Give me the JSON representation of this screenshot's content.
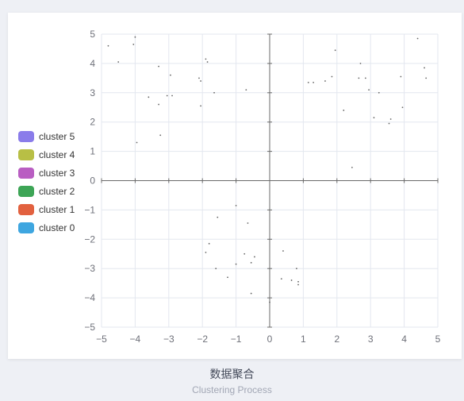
{
  "caption": {
    "title": "数据聚合",
    "subtitle": "Clustering Process"
  },
  "legend": [
    {
      "label": "cluster 5",
      "color": "#8a7cea"
    },
    {
      "label": "cluster 4",
      "color": "#b8bf45"
    },
    {
      "label": "cluster 3",
      "color": "#b95ec2"
    },
    {
      "label": "cluster 2",
      "color": "#3da556"
    },
    {
      "label": "cluster 1",
      "color": "#e2613f"
    },
    {
      "label": "cluster 0",
      "color": "#3ea6e0"
    }
  ],
  "chart_data": {
    "type": "scatter",
    "xlim": [
      -5,
      5
    ],
    "ylim": [
      -5,
      5
    ],
    "x_ticks": [
      "−5",
      "−4",
      "−3",
      "−2",
      "−1",
      "0",
      "1",
      "2",
      "3",
      "4",
      "5"
    ],
    "y_ticks": [
      "−5",
      "−4",
      "−3",
      "−2",
      "−1",
      "0",
      "1",
      "2",
      "3",
      "4",
      "5"
    ],
    "grid": true,
    "legend_position": "left",
    "point_color": "#666666",
    "series": [
      {
        "points": [
          [
            -4.8,
            4.6
          ],
          [
            -4.0,
            4.9
          ],
          [
            -4.05,
            4.65
          ],
          [
            -4.5,
            4.05
          ],
          [
            -3.3,
            3.9
          ],
          [
            -2.95,
            3.6
          ],
          [
            -3.6,
            2.85
          ],
          [
            -3.3,
            2.6
          ],
          [
            -3.05,
            2.9
          ],
          [
            -2.9,
            2.9
          ],
          [
            -3.95,
            1.3
          ],
          [
            -3.25,
            1.55
          ],
          [
            -1.9,
            4.15
          ],
          [
            -1.85,
            4.05
          ],
          [
            -2.1,
            3.5
          ],
          [
            -2.05,
            3.4
          ],
          [
            -1.65,
            3.0
          ],
          [
            -0.7,
            3.1
          ],
          [
            -2.05,
            2.55
          ]
        ]
      },
      {
        "points": [
          [
            4.4,
            4.85
          ],
          [
            1.95,
            4.45
          ],
          [
            2.7,
            4.0
          ],
          [
            4.6,
            3.85
          ],
          [
            2.65,
            3.5
          ],
          [
            2.85,
            3.5
          ],
          [
            3.9,
            3.55
          ],
          [
            4.65,
            3.5
          ],
          [
            1.85,
            3.55
          ],
          [
            1.65,
            3.4
          ],
          [
            1.3,
            3.35
          ],
          [
            1.15,
            3.35
          ],
          [
            2.95,
            3.1
          ],
          [
            3.25,
            3.0
          ],
          [
            3.95,
            2.5
          ],
          [
            2.2,
            2.4
          ],
          [
            3.1,
            2.15
          ],
          [
            3.6,
            2.1
          ],
          [
            3.55,
            1.95
          ],
          [
            2.45,
            0.45
          ]
        ]
      },
      {
        "points": [
          [
            -1.0,
            -0.85
          ],
          [
            -1.55,
            -1.25
          ],
          [
            -0.65,
            -1.45
          ],
          [
            -1.8,
            -2.15
          ],
          [
            -1.9,
            -2.45
          ],
          [
            -0.75,
            -2.5
          ],
          [
            -0.45,
            -2.6
          ],
          [
            -1.0,
            -2.85
          ],
          [
            -0.55,
            -2.8
          ],
          [
            -1.6,
            -3.0
          ],
          [
            -1.25,
            -3.3
          ],
          [
            -0.55,
            -3.85
          ]
        ]
      },
      {
        "points": [
          [
            0.4,
            -2.4
          ],
          [
            0.8,
            -3.0
          ],
          [
            0.35,
            -3.35
          ],
          [
            0.65,
            -3.4
          ],
          [
            0.85,
            -3.45
          ],
          [
            0.85,
            -3.55
          ],
          [
            0.0,
            -4.15
          ]
        ]
      }
    ]
  }
}
